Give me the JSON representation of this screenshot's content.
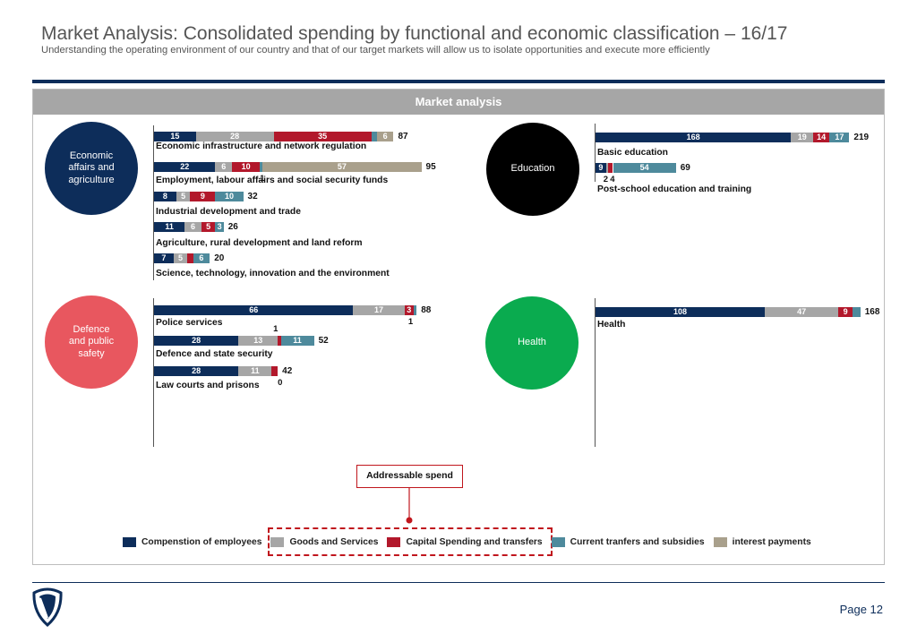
{
  "header": {
    "title": "Market Analysis: Consolidated spending by functional and economic classification – 16/17",
    "subtitle": "Understanding the operating environment of our country and that of our target markets will allow us to isolate opportunities and execute more efficiently"
  },
  "panel": {
    "title": "Market analysis"
  },
  "colors": {
    "compensation": "#0d2d5a",
    "goods": "#a6a6a6",
    "capital": "#b2182b",
    "current": "#4e8a9c",
    "interest": "#a9a08c",
    "economic_circle": "#0d2d5a",
    "education_circle": "#000000",
    "defence_circle": "#e8575f",
    "health_circle": "#0aab4f"
  },
  "chart_data": {
    "type": "bar",
    "orientation": "horizontal",
    "stacked": true,
    "legend": [
      {
        "key": "compensation",
        "label": "Compenstion of employees"
      },
      {
        "key": "goods",
        "label": "Goods and Services"
      },
      {
        "key": "capital",
        "label": "Capital Spending and transfers"
      },
      {
        "key": "current",
        "label": "Current tranfers and subsidies"
      },
      {
        "key": "interest",
        "label": "interest payments"
      }
    ],
    "annotation": "Addressable spend",
    "groups": [
      {
        "id": "economic",
        "label": "Economic affairs and agriculture",
        "rows": [
          {
            "label": "Economic infrastructure and network regulation",
            "total": 87,
            "values": {
              "compensation": 15,
              "goods": 28,
              "capital": 35,
              "current": 2,
              "interest": 6
            }
          },
          {
            "label": "Employment, labour affairs and social security funds",
            "total": 95,
            "values": {
              "compensation": 22,
              "goods": 6,
              "capital": 10,
              "current": 1,
              "interest": 57
            }
          },
          {
            "label": "Industrial development and trade",
            "total": 32,
            "values": {
              "compensation": 8,
              "goods": 5,
              "capital": 9,
              "current": 10,
              "interest": 0
            }
          },
          {
            "label": "Agriculture, rural development and land reform",
            "total": 26,
            "values": {
              "compensation": 11,
              "goods": 6,
              "capital": 5,
              "current": 3,
              "interest": 0
            }
          },
          {
            "label": "Science, technology, innovation and the environment",
            "total": 20,
            "values": {
              "compensation": 7,
              "goods": 5,
              "capital": 2,
              "current": 6,
              "interest": 0
            }
          }
        ]
      },
      {
        "id": "education",
        "label": "Education",
        "rows": [
          {
            "label": "Basic education",
            "total": 219,
            "values": {
              "compensation": 168,
              "goods": 19,
              "capital": 14,
              "current": 17,
              "interest": 0
            }
          },
          {
            "label": "Post-school education and training",
            "total": 69,
            "values": {
              "compensation": 9,
              "goods": 2,
              "capital": 4,
              "current": 54,
              "interest": 0
            }
          }
        ]
      },
      {
        "id": "defence",
        "label": "Defence and public safety",
        "rows": [
          {
            "label": "Police services",
            "total": 88,
            "values": {
              "compensation": 66,
              "goods": 17,
              "capital": 3,
              "current": 1,
              "interest": 0
            }
          },
          {
            "label": "Defence and state security",
            "total": 52,
            "values": {
              "compensation": 28,
              "goods": 13,
              "capital": 1,
              "current": 11,
              "interest": 0
            }
          },
          {
            "label": "Law courts and prisons",
            "total": 42,
            "values": {
              "compensation": 28,
              "goods": 11,
              "capital": 2,
              "current": 0,
              "interest": 0
            }
          }
        ]
      },
      {
        "id": "health",
        "label": "Health",
        "rows": [
          {
            "label": "Health",
            "total": 168,
            "values": {
              "compensation": 108,
              "goods": 47,
              "capital": 9,
              "current": 5,
              "interest": 0
            }
          }
        ]
      }
    ]
  },
  "footer": {
    "page": "Page 12"
  }
}
